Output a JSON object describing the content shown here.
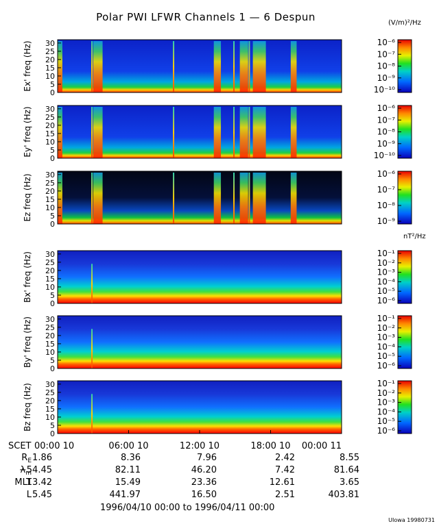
{
  "title": "Polar PWI LFWR Channels 1 — 6 Despun",
  "units": {
    "electric": "(V/m)²/Hz",
    "magnetic": "nT²/Hz"
  },
  "credit": "UIowa 19980731",
  "chart_data": {
    "type": "heatmap",
    "title": "Polar PWI LFWR Channels 1 — 6 Despun",
    "x_ticks": [
      "00:00 10",
      "06:00 10",
      "12:00 10",
      "18:00 10",
      "00:00 11"
    ],
    "x_tick_prefix": "SCET",
    "y_ticks": [
      0,
      5,
      10,
      15,
      20,
      25,
      30
    ],
    "ylim": [
      0,
      32
    ],
    "panels": [
      {
        "ylabel": "Ex' freq (Hz)",
        "kind": "electric",
        "cb_ticks": [
          "10⁻⁶",
          "10⁻⁷",
          "10⁻⁸",
          "10⁻⁹",
          "10⁻¹⁰"
        ]
      },
      {
        "ylabel": "Ey' freq (Hz)",
        "kind": "electric",
        "cb_ticks": [
          "10⁻⁶",
          "10⁻⁷",
          "10⁻⁸",
          "10⁻⁹",
          "10⁻¹⁰"
        ]
      },
      {
        "ylabel": "Ez freq (Hz)",
        "kind": "ez",
        "cb_ticks": [
          "10⁻⁶",
          "10⁻⁷",
          "10⁻⁸",
          "10⁻⁹"
        ]
      },
      {
        "ylabel": "Bx' freq (Hz)",
        "kind": "magnetic",
        "cb_ticks": [
          "10⁻¹",
          "10⁻²",
          "10⁻³",
          "10⁻⁴",
          "10⁻⁵",
          "10⁻⁶"
        ]
      },
      {
        "ylabel": "By' freq (Hz)",
        "kind": "magnetic",
        "cb_ticks": [
          "10⁻¹",
          "10⁻²",
          "10⁻³",
          "10⁻⁴",
          "10⁻⁵",
          "10⁻⁶"
        ]
      },
      {
        "ylabel": "Bz freq (Hz)",
        "kind": "magnetic",
        "cb_ticks": [
          "10⁻¹",
          "10⁻²",
          "10⁻³",
          "10⁻⁴",
          "10⁻⁵",
          "10⁻⁶"
        ]
      }
    ],
    "orbit_table": {
      "rows": [
        {
          "label": "R",
          "sub": "E",
          "values": [
            "1.86",
            "8.36",
            "7.96",
            "2.42",
            "8.55"
          ]
        },
        {
          "label": "λ",
          "sub": "m",
          "values": [
            "−54.45",
            "82.11",
            "46.20",
            "7.42",
            "81.64"
          ]
        },
        {
          "label": "MLT",
          "sub": "",
          "values": [
            "13.42",
            "15.49",
            "23.36",
            "12.61",
            "3.65"
          ]
        },
        {
          "label": "L",
          "sub": "",
          "values": [
            "5.45",
            "441.97",
            "16.50",
            "2.51",
            "403.81"
          ]
        }
      ]
    },
    "date_range": "1996/04/10 00:00 to 1996/04/11 00:00",
    "bursts_hours": [
      [
        0.0,
        0.4
      ],
      [
        3.0,
        3.8
      ],
      [
        13.2,
        13.8
      ],
      [
        15.4,
        16.1
      ],
      [
        16.5,
        17.6
      ],
      [
        19.7,
        20.2
      ]
    ],
    "spikes_hours": [
      2.9,
      9.8,
      14.9,
      16.2
    ]
  }
}
